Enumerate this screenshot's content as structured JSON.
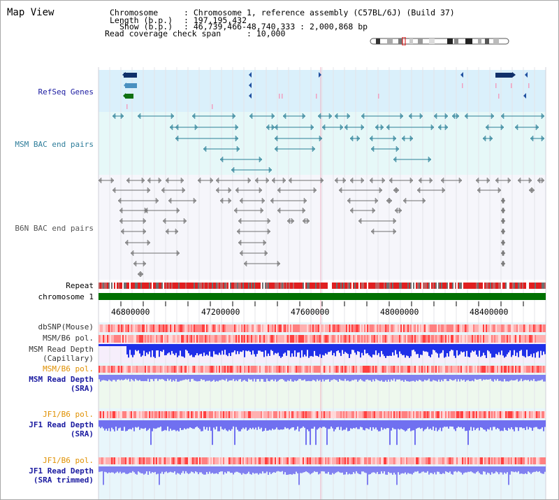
{
  "page": {
    "title": "Map View"
  },
  "info": {
    "chromosome_label": "Chromosome",
    "chromosome_value": ": Chromosome 1, reference assembly (C57BL/6J) (Build 37)",
    "length_label": "Length (b.p.)",
    "length_value": ": 197,195,432",
    "show_label": "Show (b.p.)",
    "show_value": ": 46,739,466-48,740,333 : 2,000,868 bp",
    "coverage_label": "Read coverage check span",
    "coverage_value": ": 10,000"
  },
  "tracks": {
    "refseq": "RefSeq Genes",
    "msm_bac": "MSM BAC end pairs",
    "b6n_bac": "B6N BAC end pairs",
    "repeat": "Repeat",
    "chromosome": "chromosome 1",
    "dbsnp": "dbSNP(Mouse)",
    "msm_b6_pol_1": "MSM/B6 pol.",
    "msm_read_depth_cap_1": "MSM Read Depth",
    "msm_read_depth_cap_2": "(Capillary)",
    "msm_b6_pol_2": "MSM/B6 pol.",
    "msm_read_depth_sra_1": "MSM Read Depth",
    "msm_read_depth_sra_2": "(SRA)",
    "jf1_b6_pol_1": "JF1/B6 pol.",
    "jf1_read_depth_sra_1": "JF1 Read Depth",
    "jf1_read_depth_sra_2": "(SRA)",
    "jf1_b6_pol_2": "JF1/B6 pol.",
    "jf1_read_depth_trim_1": "JF1 Read Depth",
    "jf1_read_depth_trim_2": "(SRA trimmed)"
  },
  "ruler": {
    "ticks": [
      "46800000",
      "47200000",
      "47600000",
      "48000000",
      "48400000"
    ]
  },
  "colors": {
    "refseq_bg": "#daf0fb",
    "bac_bg": "#e6f8f8",
    "b6n_bg": "#f6f6fb",
    "msm_label": "#2e7d9a",
    "gene_label": "#1a1aa0",
    "orange_label": "#e09000",
    "chromosome_bar": "#007000",
    "depth_blue": "#1a2ee6",
    "depth_light": "#8080f0",
    "pol_red": "#ff9090"
  }
}
